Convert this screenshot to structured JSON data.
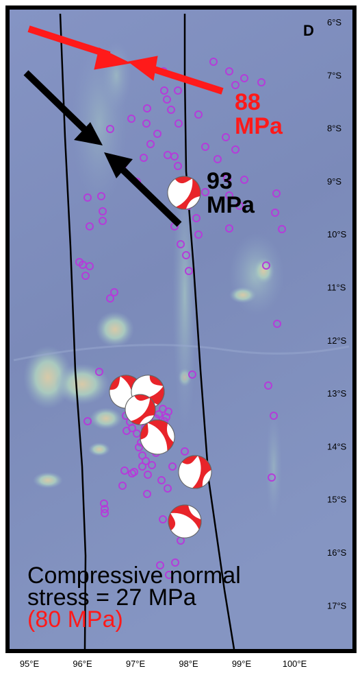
{
  "panel_label": "D",
  "stress_labels": {
    "red": {
      "value": "88",
      "unit": "MPa",
      "color": "#ff1a1a"
    },
    "black": {
      "value": "93",
      "unit": "MPa",
      "color": "#000000"
    }
  },
  "caption": {
    "line1": "Compressive normal",
    "line2": "stress = 27 MPa",
    "line3": "(80 MPa)"
  },
  "lat_labels": [
    "6°S",
    "7°S",
    "8°S",
    "9°S",
    "10°S",
    "11°S",
    "12°S",
    "13°S",
    "14°S",
    "15°S",
    "16°S",
    "17°S"
  ],
  "lon_labels": [
    "95°E",
    "96°E",
    "97°E",
    "98°E",
    "99°E",
    "100°E"
  ],
  "colors": {
    "ocean": "#7e8fbf",
    "seamount": "#9fc3bd",
    "epicenter": "#b43cd9",
    "beachball_red": "#e8242a",
    "beachball_white": "#ffffff"
  },
  "earthquake_count": 110,
  "focal_mechanism_count": 7
}
